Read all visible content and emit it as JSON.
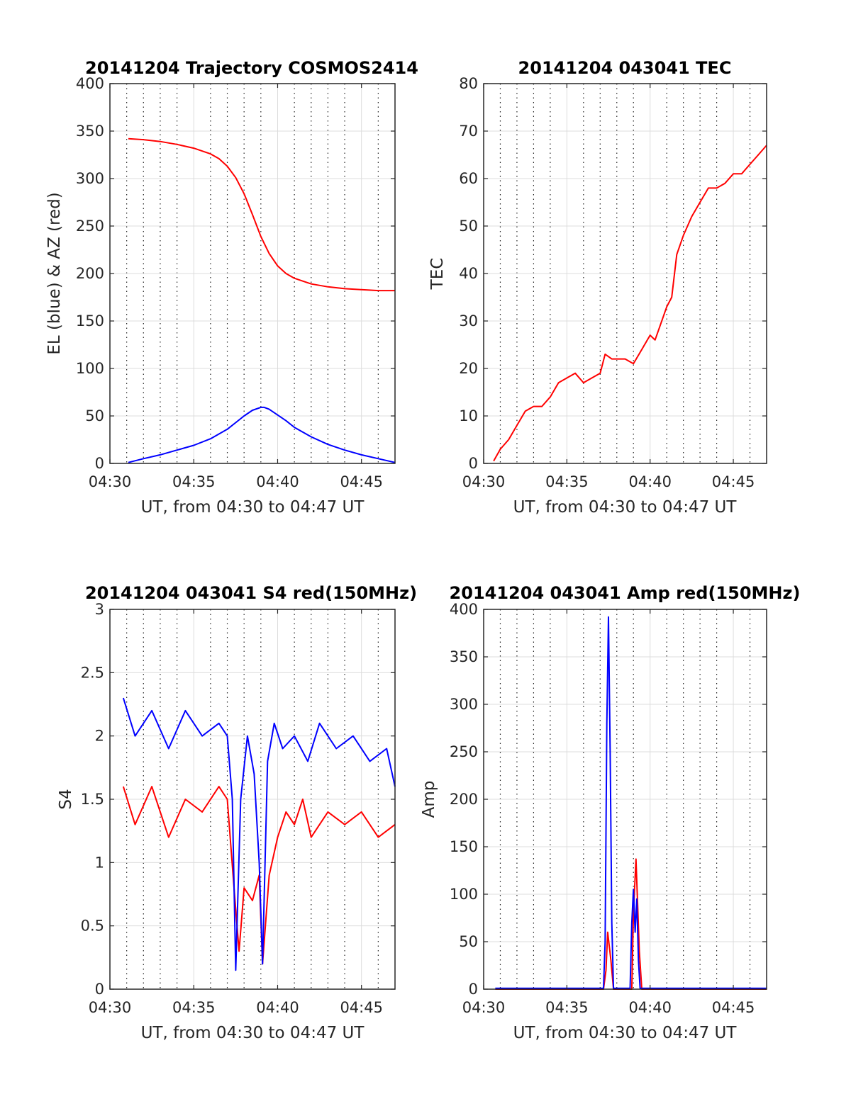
{
  "chart_data": [
    {
      "type": "line",
      "title": "20141204 Trajectory COSMOS2414",
      "xlabel": "UT, from 04:30 to 04:47 UT",
      "ylabel": "EL (blue) & AZ (red)",
      "xlim": [
        30,
        47
      ],
      "ylim": [
        0,
        400
      ],
      "xticks": [
        30,
        35,
        40,
        45
      ],
      "xtick_labels": [
        "04:30",
        "04:35",
        "04:40",
        "04:45"
      ],
      "yticks": [
        0,
        50,
        100,
        150,
        200,
        250,
        300,
        350,
        400
      ],
      "ytick_labels": [
        "0",
        "50",
        "100",
        "150",
        "200",
        "250",
        "300",
        "350",
        "400"
      ],
      "grid": true,
      "series": [
        {
          "color": "#ff0000",
          "x": [
            31.1,
            32,
            33,
            34,
            35,
            36,
            36.5,
            37,
            37.5,
            38,
            38.5,
            39,
            39.5,
            40,
            40.5,
            41,
            41.5,
            42,
            43,
            44,
            45,
            46,
            47
          ],
          "y": [
            342,
            341,
            339,
            336,
            332,
            326,
            321,
            313,
            301,
            284,
            262,
            239,
            221,
            208,
            200,
            195,
            192,
            189,
            186,
            184,
            183,
            182,
            182
          ]
        },
        {
          "color": "#0000ff",
          "x": [
            31.1,
            32,
            33,
            34,
            35,
            36,
            37,
            37.5,
            38,
            38.5,
            39,
            39.2,
            39.5,
            40,
            40.5,
            41,
            42,
            43,
            44,
            45,
            46,
            47
          ],
          "y": [
            1,
            5,
            9,
            14,
            19,
            26,
            36,
            43,
            50,
            56,
            59,
            59,
            57,
            51,
            45,
            38,
            28,
            20,
            14,
            9,
            5,
            1
          ]
        }
      ]
    },
    {
      "type": "line",
      "title": "20141204 043041 TEC",
      "xlabel": "UT, from 04:30 to 04:47 UT",
      "ylabel": "TEC",
      "xlim": [
        30,
        47
      ],
      "ylim": [
        0,
        80
      ],
      "xticks": [
        30,
        35,
        40,
        45
      ],
      "xtick_labels": [
        "04:30",
        "04:35",
        "04:40",
        "04:45"
      ],
      "yticks": [
        0,
        10,
        20,
        30,
        40,
        50,
        60,
        70,
        80
      ],
      "ytick_labels": [
        "0",
        "10",
        "20",
        "30",
        "40",
        "50",
        "60",
        "70",
        "80"
      ],
      "grid": true,
      "series": [
        {
          "color": "#ff0000",
          "x": [
            30.6,
            31.0,
            31.5,
            32.0,
            32.5,
            33.0,
            33.5,
            34.0,
            34.5,
            35.0,
            35.5,
            36.0,
            36.5,
            37.0,
            37.3,
            37.7,
            38.0,
            38.5,
            39.0,
            39.5,
            40.0,
            40.3,
            40.6,
            41.0,
            41.3,
            41.6,
            42.0,
            42.5,
            43.0,
            43.5,
            44.0,
            44.5,
            45.0,
            45.5,
            46.0,
            46.5,
            47.0
          ],
          "y": [
            0.5,
            3,
            5,
            8,
            11,
            12,
            12,
            14,
            17,
            18,
            19,
            17,
            18,
            19,
            23,
            22,
            22,
            22,
            21,
            24,
            27,
            26,
            29,
            33,
            35,
            44,
            48,
            52,
            55,
            58,
            58,
            59,
            61,
            61,
            63,
            65,
            67
          ]
        }
      ]
    },
    {
      "type": "line",
      "title": "20141204 043041 S4 red(150MHz)",
      "xlabel": "UT, from 04:30 to 04:47 UT",
      "ylabel": "S4",
      "xlim": [
        30,
        47
      ],
      "ylim": [
        0,
        3
      ],
      "xticks": [
        30,
        35,
        40,
        45
      ],
      "xtick_labels": [
        "04:30",
        "04:35",
        "04:40",
        "04:45"
      ],
      "yticks": [
        0,
        0.5,
        1,
        1.5,
        2,
        2.5,
        3
      ],
      "ytick_labels": [
        "0",
        "0.5",
        "1",
        "1.5",
        "2",
        "2.5",
        "3"
      ],
      "grid": true,
      "series": [
        {
          "color": "#ff0000",
          "x": [
            30.8,
            31.5,
            32.5,
            33.5,
            34.5,
            35.5,
            36.5,
            37.0,
            37.4,
            37.7,
            38.0,
            38.5,
            38.9,
            39.1,
            39.5,
            40.0,
            40.5,
            41.0,
            41.5,
            42.0,
            42.5,
            43.0,
            44.0,
            45.0,
            46.0,
            47.0
          ],
          "y": [
            1.6,
            1.3,
            1.6,
            1.2,
            1.5,
            1.4,
            1.6,
            1.5,
            0.8,
            0.3,
            0.8,
            0.7,
            0.9,
            0.2,
            0.9,
            1.2,
            1.4,
            1.3,
            1.5,
            1.2,
            1.3,
            1.4,
            1.3,
            1.4,
            1.2,
            1.3
          ]
        },
        {
          "color": "#0000ff",
          "x": [
            30.8,
            31.5,
            32.5,
            33.5,
            34.5,
            35.5,
            36.5,
            37.0,
            37.3,
            37.5,
            37.8,
            38.2,
            38.6,
            38.9,
            39.1,
            39.4,
            39.8,
            40.3,
            41.0,
            41.8,
            42.5,
            43.5,
            44.5,
            45.5,
            46.5,
            47.0
          ],
          "y": [
            2.3,
            2.0,
            2.2,
            1.9,
            2.2,
            2.0,
            2.1,
            2.0,
            1.5,
            0.15,
            1.5,
            2.0,
            1.7,
            1.0,
            0.2,
            1.8,
            2.1,
            1.9,
            2.0,
            1.8,
            2.1,
            1.9,
            2.0,
            1.8,
            1.9,
            1.6
          ]
        }
      ]
    },
    {
      "type": "line",
      "title": "20141204 043041 Amp red(150MHz)",
      "xlabel": "UT, from 04:30 to 04:47 UT",
      "ylabel": "Amp",
      "xlim": [
        30,
        47
      ],
      "ylim": [
        0,
        400
      ],
      "xticks": [
        30,
        35,
        40,
        45
      ],
      "xtick_labels": [
        "04:30",
        "04:35",
        "04:40",
        "04:45"
      ],
      "yticks": [
        0,
        50,
        100,
        150,
        200,
        250,
        300,
        350,
        400
      ],
      "ytick_labels": [
        "0",
        "50",
        "100",
        "150",
        "200",
        "250",
        "300",
        "350",
        "400"
      ],
      "grid": true,
      "series": [
        {
          "color": "#ff0000",
          "x": [
            30.7,
            37.2,
            37.35,
            37.45,
            37.55,
            37.65,
            37.8,
            38.9,
            39.0,
            39.15,
            39.25,
            39.35,
            39.5,
            47.0
          ],
          "y": [
            0,
            0,
            20,
            60,
            45,
            30,
            0,
            0,
            80,
            137,
            90,
            40,
            0,
            0
          ]
        },
        {
          "color": "#0000ff",
          "x": [
            30.7,
            37.2,
            37.3,
            37.4,
            37.5,
            37.6,
            37.7,
            37.8,
            38.8,
            38.9,
            39.0,
            39.1,
            39.2,
            39.3,
            39.4,
            47.0
          ],
          "y": [
            1,
            1,
            50,
            280,
            392,
            250,
            70,
            1,
            1,
            70,
            105,
            60,
            95,
            30,
            1,
            1
          ]
        }
      ]
    }
  ]
}
